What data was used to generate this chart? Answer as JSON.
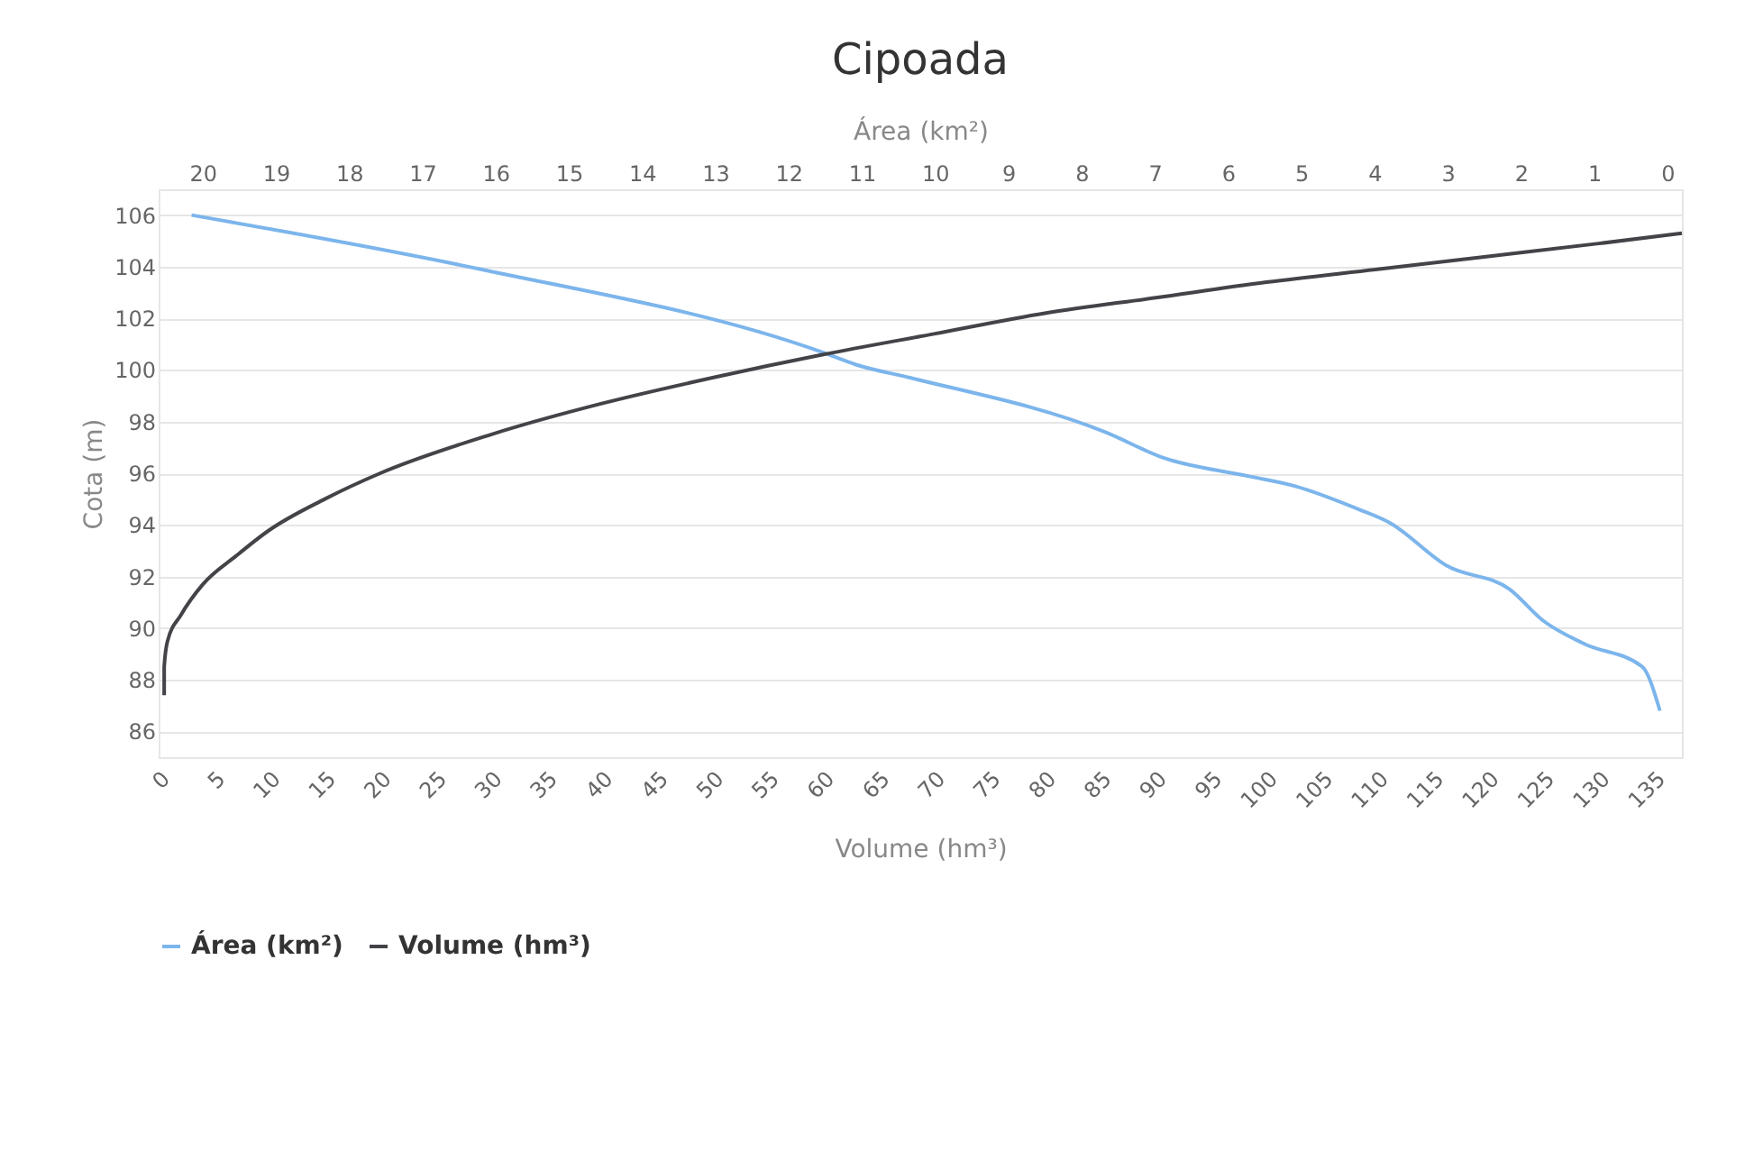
{
  "chart_data": {
    "type": "line",
    "title": "Cipoada",
    "xlabel": "Volume (hm³)",
    "x2label": "Área (km²)",
    "ylabel": "Cota (m)",
    "xlim": [
      0,
      137.5
    ],
    "xticks": [
      0,
      5,
      10,
      15,
      20,
      25,
      30,
      35,
      40,
      45,
      50,
      55,
      60,
      65,
      70,
      75,
      80,
      85,
      90,
      95,
      100,
      105,
      110,
      115,
      120,
      125,
      130,
      135
    ],
    "x2lim": [
      20.6,
      -0.2
    ],
    "x2ticks": [
      20,
      19,
      18,
      17,
      16,
      15,
      14,
      13,
      12,
      11,
      10,
      9,
      8,
      7,
      6,
      5,
      4,
      3,
      2,
      1,
      0
    ],
    "ylim": [
      85,
      107
    ],
    "yticks": [
      86,
      88,
      90,
      92,
      94,
      96,
      98,
      100,
      102,
      104,
      106
    ],
    "grid": "y",
    "legend": "bottom",
    "series": [
      {
        "name": "Área (km²)",
        "color": "#7cb5ec",
        "axis": "x2",
        "x": [
          20.15,
          16.2,
          11.55,
          11.07,
          10.34,
          7.68,
          6.88,
          5.74,
          5.08,
          4.21,
          3.8,
          3.0,
          2.15,
          1.7,
          1.14,
          0.34,
          0.1
        ],
        "values": [
          106,
          103.9,
          100.7,
          100.2,
          99.7,
          97.6,
          96.6,
          95.9,
          95.5,
          94.6,
          94.1,
          92.4,
          91.5,
          90.3,
          89.4,
          88.5,
          86.8
        ]
      },
      {
        "name": "Volume (hm³)",
        "color": "#434348",
        "x": [
          0.5,
          0.5,
          0.8,
          2,
          4,
          7,
          10,
          15,
          20,
          30,
          40,
          50,
          60,
          70,
          80,
          90,
          100,
          110,
          120,
          130,
          137.5
        ],
        "values": [
          87.4,
          88.5,
          89.5,
          90.5,
          91.7,
          92.8,
          93.8,
          95,
          96,
          97.5,
          98.7,
          99.7,
          100.6,
          101.4,
          102.2,
          102.8,
          103.4,
          103.9,
          104.4,
          104.9,
          105.3
        ]
      }
    ]
  }
}
